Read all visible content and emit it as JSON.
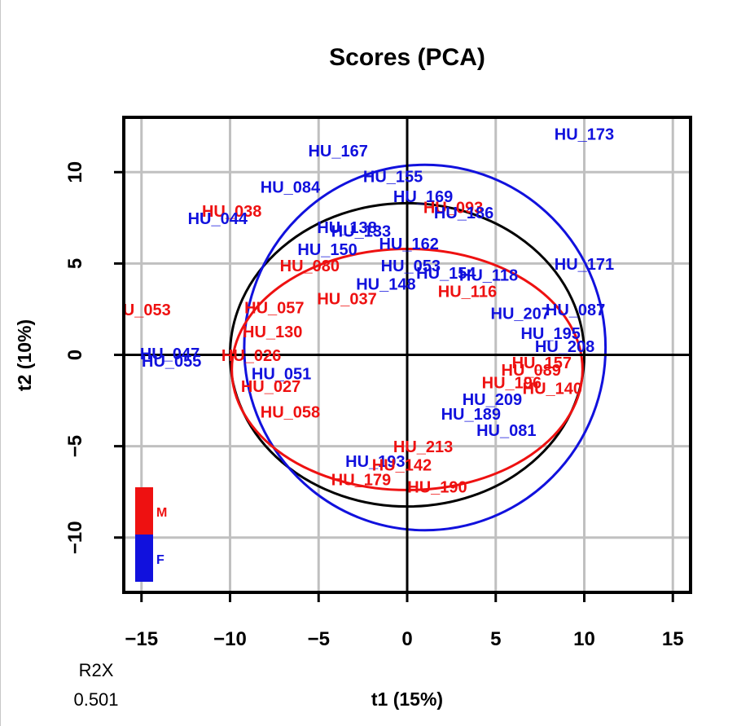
{
  "chart_data": {
    "type": "scatter",
    "title": "Scores (PCA)",
    "xlabel": "t1 (15%)",
    "ylabel": "t2 (10%)",
    "xlim": [
      -16,
      16
    ],
    "ylim": [
      -13,
      13
    ],
    "xticks": [
      -15,
      -10,
      -5,
      0,
      5,
      10,
      15
    ],
    "yticks": [
      -10,
      -5,
      0,
      5,
      10
    ],
    "grid": true,
    "legend_position": "bottom-left",
    "r2x_label": "R2X",
    "r2x_value": "0.501",
    "colors": {
      "M": "#ee1111",
      "F": "#1111dd",
      "ellipse_all": "#000000",
      "axes": "#000000",
      "grid": "#c0c0c0"
    },
    "series": [
      {
        "name": "M",
        "color": "#ee1111"
      },
      {
        "name": "F",
        "color": "#1111dd"
      }
    ],
    "points": [
      {
        "label": "HU_173",
        "x": 10.0,
        "y": 12.0,
        "group": "F"
      },
      {
        "label": "HU_167",
        "x": -3.9,
        "y": 11.1,
        "group": "F"
      },
      {
        "label": "HU_155",
        "x": -0.8,
        "y": 9.7,
        "group": "F"
      },
      {
        "label": "HU_084",
        "x": -6.6,
        "y": 9.1,
        "group": "F"
      },
      {
        "label": "HU_169",
        "x": 0.9,
        "y": 8.6,
        "group": "F"
      },
      {
        "label": "HU_093",
        "x": 2.6,
        "y": 8.0,
        "group": "M"
      },
      {
        "label": "HU_186",
        "x": 3.2,
        "y": 7.7,
        "group": "F"
      },
      {
        "label": "HU_038",
        "x": -9.9,
        "y": 7.8,
        "group": "M"
      },
      {
        "label": "HU_044",
        "x": -10.7,
        "y": 7.4,
        "group": "F"
      },
      {
        "label": "HU_138",
        "x": -3.4,
        "y": 6.9,
        "group": "F"
      },
      {
        "label": "HU_133",
        "x": -2.6,
        "y": 6.7,
        "group": "F"
      },
      {
        "label": "HU_162",
        "x": 0.1,
        "y": 6.0,
        "group": "F"
      },
      {
        "label": "HU_150",
        "x": -4.5,
        "y": 5.7,
        "group": "F"
      },
      {
        "label": "HU_171",
        "x": 10.0,
        "y": 4.9,
        "group": "F"
      },
      {
        "label": "HU_080",
        "x": -5.5,
        "y": 4.8,
        "group": "M"
      },
      {
        "label": "HU_053",
        "x": 0.2,
        "y": 4.8,
        "group": "F"
      },
      {
        "label": "HU_154",
        "x": 2.2,
        "y": 4.4,
        "group": "F"
      },
      {
        "label": "HU_118",
        "x": 4.6,
        "y": 4.3,
        "group": "F"
      },
      {
        "label": "HU_148",
        "x": -1.2,
        "y": 3.8,
        "group": "F"
      },
      {
        "label": "HU_116",
        "x": 3.4,
        "y": 3.4,
        "group": "M"
      },
      {
        "label": "HU_037",
        "x": -3.4,
        "y": 3.0,
        "group": "M"
      },
      {
        "label": "U_053",
        "x": -14.7,
        "y": 2.4,
        "group": "M"
      },
      {
        "label": "HU_057",
        "x": -7.5,
        "y": 2.5,
        "group": "M"
      },
      {
        "label": "HU_207",
        "x": 6.4,
        "y": 2.2,
        "group": "F"
      },
      {
        "label": "HU_087",
        "x": 9.5,
        "y": 2.4,
        "group": "F"
      },
      {
        "label": "HU_130",
        "x": -7.6,
        "y": 1.2,
        "group": "M"
      },
      {
        "label": "HU_195",
        "x": 8.1,
        "y": 1.1,
        "group": "F"
      },
      {
        "label": "HU_208",
        "x": 8.9,
        "y": 0.4,
        "group": "F"
      },
      {
        "label": "HU_047",
        "x": -13.4,
        "y": 0.0,
        "group": "F"
      },
      {
        "label": "HU_055",
        "x": -13.3,
        "y": -0.4,
        "group": "F"
      },
      {
        "label": "HU_026",
        "x": -8.8,
        "y": -0.1,
        "group": "M"
      },
      {
        "label": "HU_157",
        "x": 7.6,
        "y": -0.5,
        "group": "M"
      },
      {
        "label": "HU_051",
        "x": -7.1,
        "y": -1.1,
        "group": "F"
      },
      {
        "label": "HU_089",
        "x": 7.0,
        "y": -0.9,
        "group": "M"
      },
      {
        "label": "HU_196",
        "x": 5.9,
        "y": -1.6,
        "group": "M"
      },
      {
        "label": "HU_140",
        "x": 8.2,
        "y": -1.9,
        "group": "M"
      },
      {
        "label": "HU_027",
        "x": -7.7,
        "y": -1.8,
        "group": "M"
      },
      {
        "label": "HU_209",
        "x": 4.8,
        "y": -2.5,
        "group": "F"
      },
      {
        "label": "HU_058",
        "x": -6.6,
        "y": -3.2,
        "group": "M"
      },
      {
        "label": "HU_189",
        "x": 3.6,
        "y": -3.3,
        "group": "F"
      },
      {
        "label": "HU_081",
        "x": 5.6,
        "y": -4.2,
        "group": "F"
      },
      {
        "label": "HU_213",
        "x": 0.9,
        "y": -5.1,
        "group": "M"
      },
      {
        "label": "HU_193",
        "x": -1.8,
        "y": -5.9,
        "group": "F"
      },
      {
        "label": "HU_142",
        "x": -0.3,
        "y": -6.1,
        "group": "M"
      },
      {
        "label": "HU_179",
        "x": -2.6,
        "y": -6.9,
        "group": "M"
      },
      {
        "label": "HU_190",
        "x": 1.7,
        "y": -7.3,
        "group": "M"
      }
    ],
    "ellipses": [
      {
        "group": "all",
        "cx": 0.0,
        "cy": 0.0,
        "rx": 10.0,
        "ry": 8.3
      },
      {
        "group": "F",
        "cx": 1.0,
        "cy": 0.4,
        "rx": 10.2,
        "ry": 10.0
      },
      {
        "group": "M",
        "cx": 0.0,
        "cy": -0.8,
        "rx": 9.9,
        "ry": 6.6
      }
    ]
  }
}
